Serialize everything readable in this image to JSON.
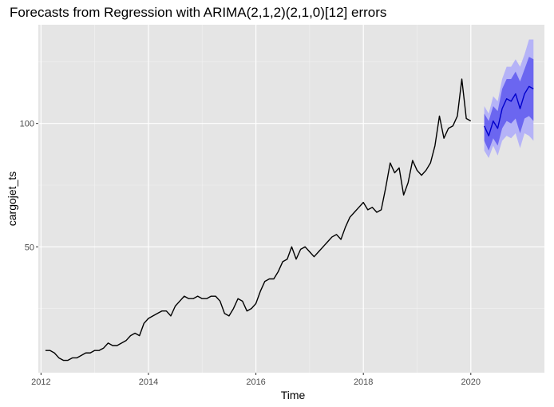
{
  "chart_data": {
    "type": "line",
    "title": "Forecasts from Regression with ARIMA(2,1,2)(2,1,0)[12] errors",
    "xlabel": "Time",
    "ylabel": "cargojet_ts",
    "xlim": [
      2011.95,
      2021.37
    ],
    "ylim": [
      -1,
      140
    ],
    "x_ticks": [
      2012,
      2014,
      2016,
      2018,
      2020
    ],
    "x_tick_labels": [
      "2012",
      "2014",
      "2016",
      "2018",
      "2020"
    ],
    "y_ticks": [
      50,
      100
    ],
    "y_tick_labels": [
      "50",
      "100"
    ],
    "grid": true,
    "background": "#e5e5e5",
    "colors": {
      "history": "#000000",
      "forecast_mean": "#0000cc",
      "band_95": "#b5b3f7",
      "band_80": "#6b66f0"
    },
    "series": [
      {
        "role": "history",
        "x_start": 2012.083,
        "x_step": 0.08333,
        "values": [
          8,
          8,
          7,
          5,
          4,
          4,
          5,
          5,
          6,
          7,
          7,
          8,
          8,
          9,
          11,
          10,
          10,
          11,
          12,
          14,
          15,
          14,
          19,
          21,
          22,
          23,
          24,
          24,
          22,
          26,
          28,
          30,
          29,
          29,
          30,
          29,
          29,
          30,
          30,
          28,
          23,
          22,
          25,
          29,
          28,
          24,
          25,
          27,
          32,
          36,
          37,
          37,
          40,
          44,
          45,
          50,
          45,
          49,
          50,
          48,
          46,
          48,
          50,
          52,
          54,
          55,
          53,
          58,
          62,
          64,
          66,
          68,
          65,
          66,
          64,
          65,
          74,
          84,
          80,
          82,
          71,
          76,
          85,
          81,
          79,
          81,
          84,
          91,
          103,
          94,
          98,
          99,
          103,
          118,
          102,
          101
        ]
      },
      {
        "role": "forecast",
        "x_start": 2020.25,
        "x_step": 0.08333,
        "mean": [
          99,
          95,
          101,
          98,
          106,
          110,
          109,
          112,
          106,
          112,
          115,
          114
        ],
        "lo80": [
          93,
          89,
          94,
          91,
          98,
          101,
          100,
          102,
          96,
          102,
          103,
          101
        ],
        "hi80": [
          104,
          101,
          107,
          105,
          114,
          118,
          118,
          121,
          117,
          122,
          127,
          126
        ],
        "lo95": [
          89,
          86,
          91,
          87,
          93,
          95,
          94,
          96,
          90,
          96,
          95,
          93
        ],
        "hi95": [
          107,
          104,
          111,
          109,
          118,
          123,
          123,
          126,
          123,
          128,
          134,
          134
        ]
      }
    ]
  }
}
